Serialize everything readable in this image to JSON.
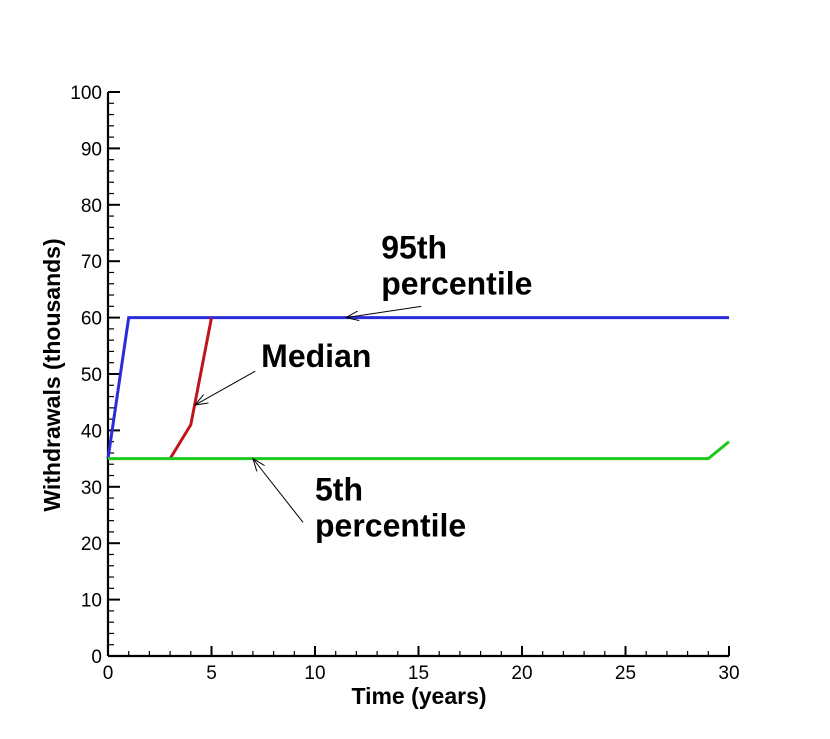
{
  "chart_data": {
    "type": "line",
    "xlabel": "Time (years)",
    "ylabel": "Withdrawals (thousands)",
    "xlim": [
      0,
      30
    ],
    "ylim": [
      0,
      100
    ],
    "x_ticks": [
      "0",
      "5",
      "10",
      "15",
      "20",
      "25",
      "30"
    ],
    "y_ticks": [
      "0",
      "10",
      "20",
      "30",
      "40",
      "50",
      "60",
      "70",
      "80",
      "90",
      "100"
    ],
    "grid": false,
    "series": [
      {
        "name": "95th percentile",
        "color": "#2b2bdc",
        "x": [
          0,
          1,
          30
        ],
        "y": [
          35,
          60,
          60
        ]
      },
      {
        "name": "Median",
        "color": "#c0141c",
        "x": [
          3,
          4,
          5
        ],
        "y": [
          35,
          41,
          60
        ]
      },
      {
        "name": "5th percentile",
        "color": "#1ec81e",
        "x": [
          0,
          29,
          30
        ],
        "y": [
          35,
          35,
          38
        ]
      }
    ],
    "annotations": [
      {
        "lines": [
          "95th",
          "percentile"
        ],
        "target": [
          11.5,
          60
        ],
        "textAt": [
          13.2,
          70.5
        ]
      },
      {
        "lines": [
          "Median"
        ],
        "target": [
          4.2,
          44.5
        ],
        "textAt": [
          7.4,
          51.2
        ]
      },
      {
        "lines": [
          "5th",
          "percentile"
        ],
        "target": [
          7.0,
          35
        ],
        "textAt": [
          10.0,
          27.6
        ]
      }
    ]
  }
}
